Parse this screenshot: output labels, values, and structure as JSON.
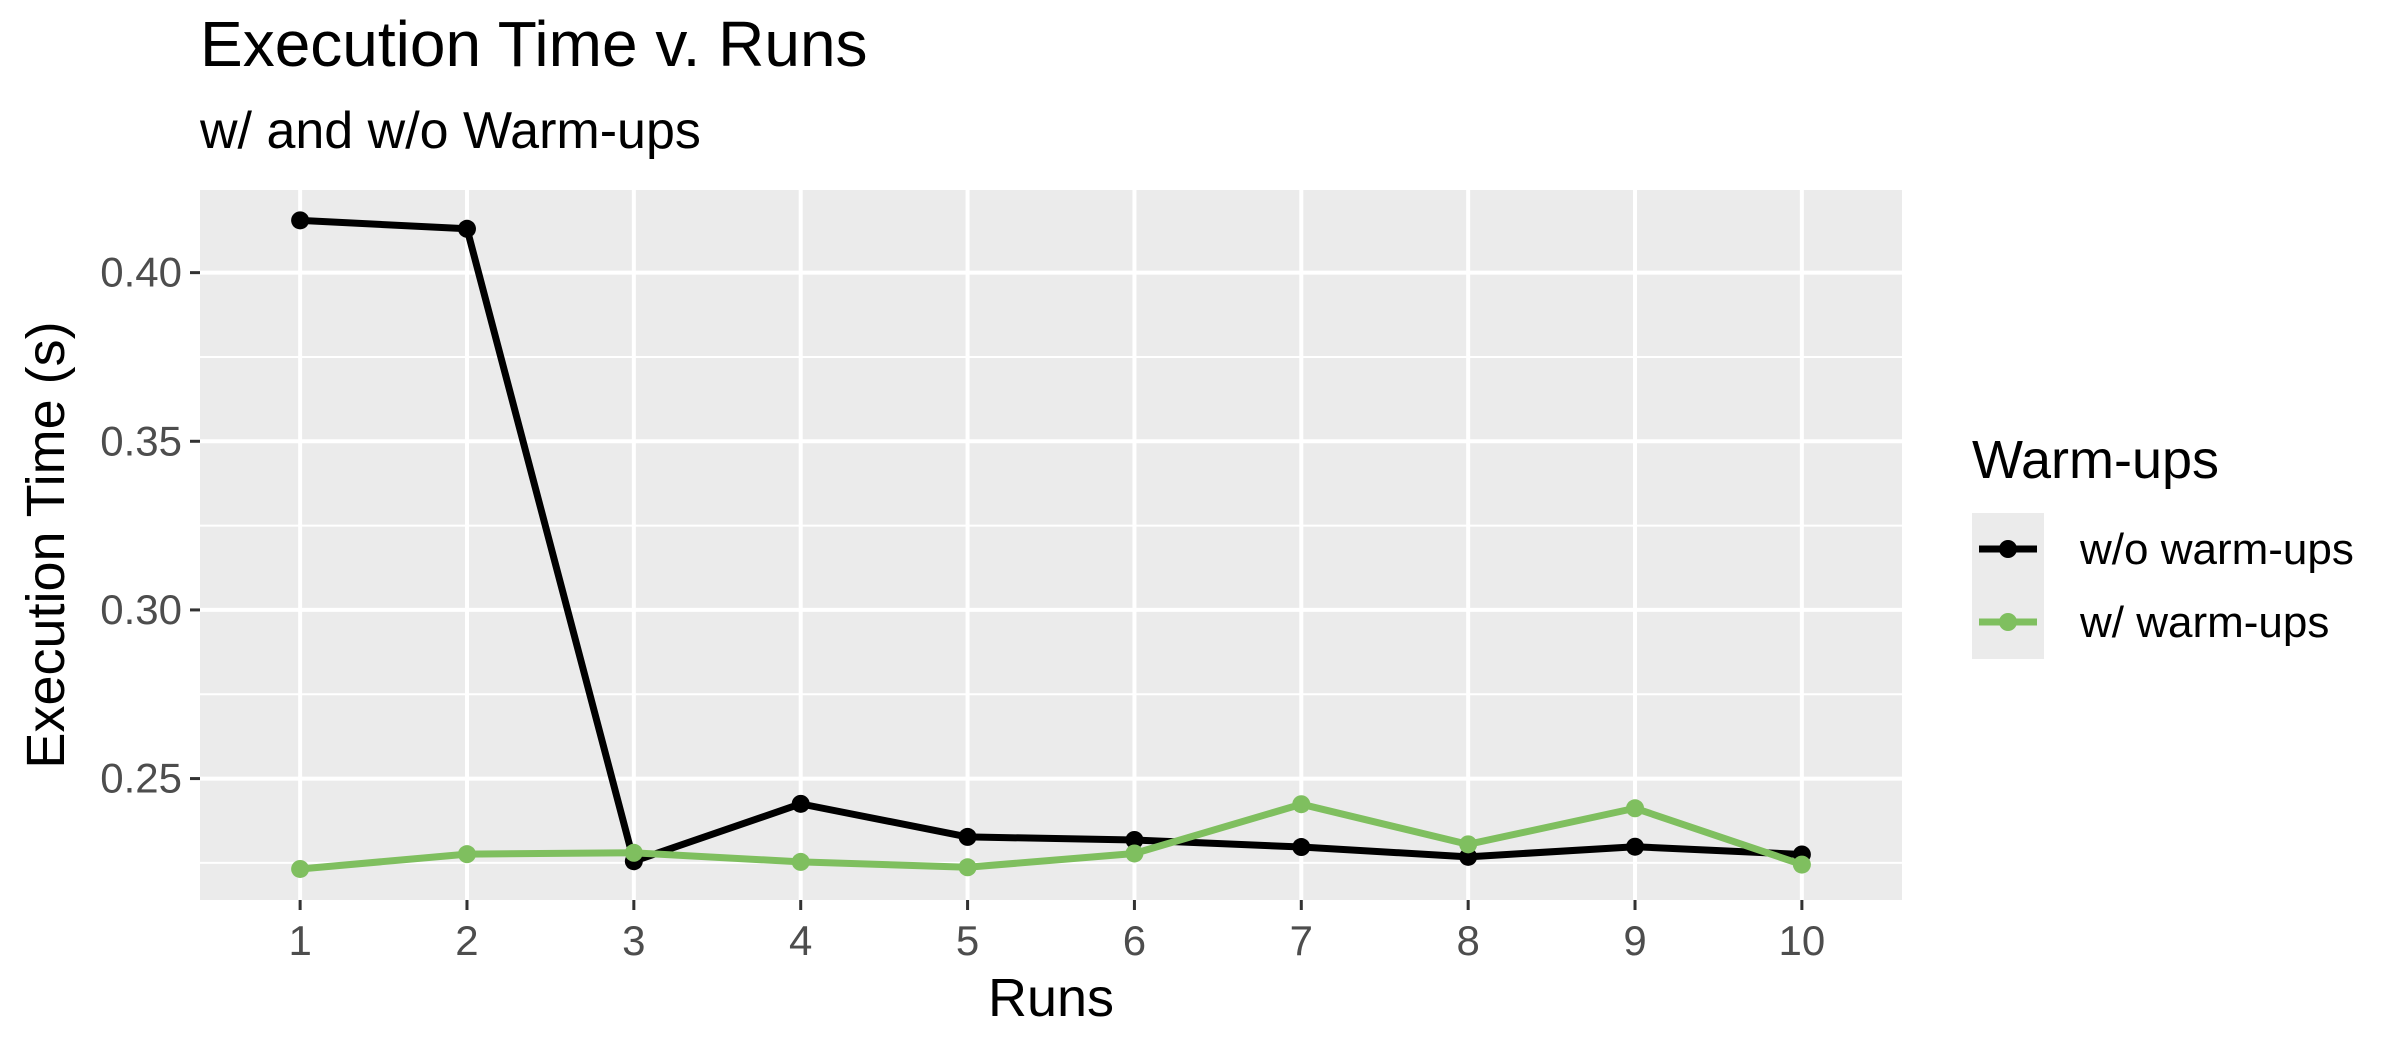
{
  "chart_data": {
    "type": "line",
    "title": "Execution Time v. Runs",
    "subtitle": "w/ and w/o Warm-ups",
    "xlabel": "Runs",
    "ylabel": "Execution Time (s)",
    "x": [
      1,
      2,
      3,
      4,
      5,
      6,
      7,
      8,
      9,
      10
    ],
    "x_ticks": [
      "1",
      "2",
      "3",
      "4",
      "5",
      "6",
      "7",
      "8",
      "9",
      "10"
    ],
    "xlim": [
      0.4,
      10.6
    ],
    "y_ticks": [
      "0.25",
      "0.30",
      "0.35",
      "0.40"
    ],
    "y_tick_values": [
      0.25,
      0.3,
      0.35,
      0.4
    ],
    "y_minor_values": [
      0.225,
      0.275,
      0.325,
      0.375
    ],
    "ylim": [
      0.214,
      0.4245
    ],
    "grid": true,
    "legend": {
      "title": "Warm-ups",
      "position": "right"
    },
    "series": [
      {
        "name": "w/o warm-ups",
        "color": "#000000",
        "values": [
          0.4155,
          0.413,
          0.2255,
          0.2425,
          0.2327,
          0.2318,
          0.2297,
          0.2268,
          0.2298,
          0.2275
        ]
      },
      {
        "name": "w/ warm-ups",
        "color": "#7fbf5f",
        "values": [
          0.2232,
          0.2276,
          0.228,
          0.2253,
          0.2237,
          0.2278,
          0.2424,
          0.2305,
          0.2412,
          0.2245
        ]
      }
    ]
  },
  "colors": {
    "panel_background": "#ebebeb",
    "grid_major": "#ffffff",
    "tick_label": "#4d4d4d",
    "tick_mark": "#333333"
  }
}
